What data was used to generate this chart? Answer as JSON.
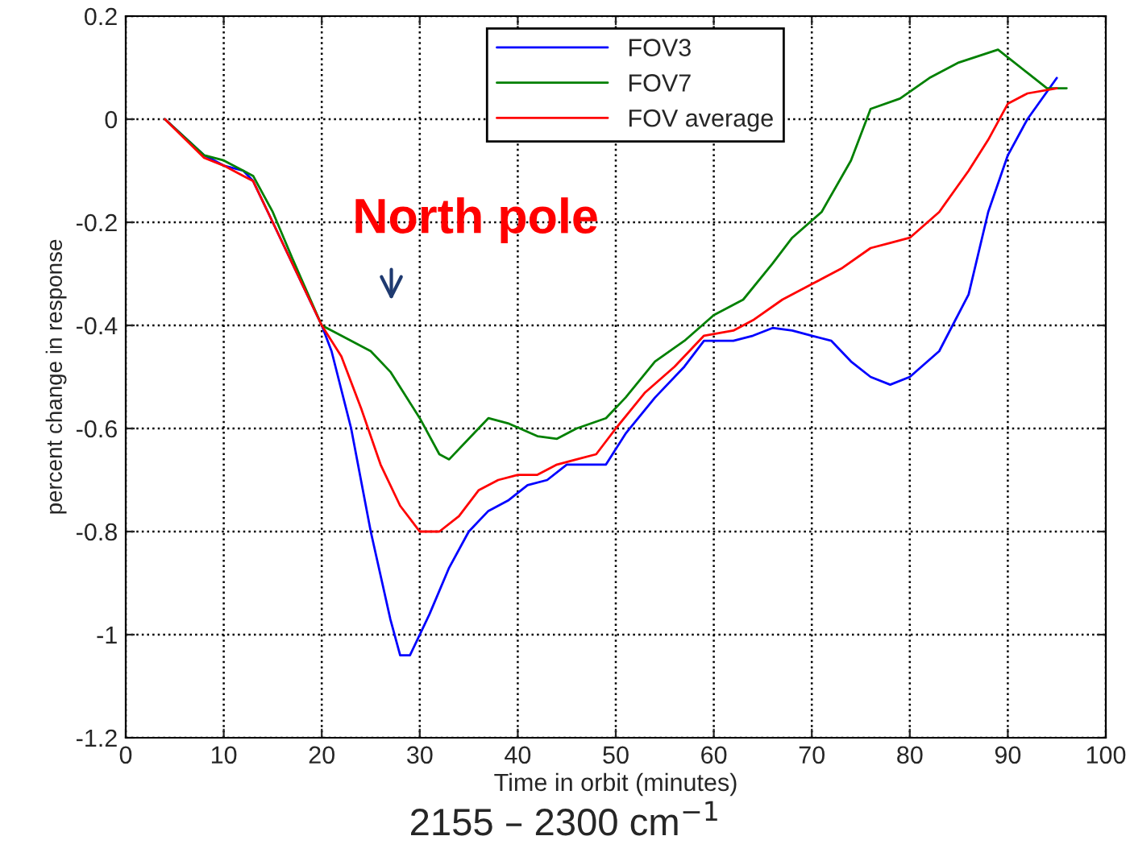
{
  "chart_data": {
    "type": "line",
    "xlabel": "Time in orbit (minutes)",
    "ylabel": "percent change in response",
    "xlim": [
      0,
      100
    ],
    "xticks": [
      0,
      10,
      20,
      30,
      40,
      50,
      60,
      70,
      80,
      90,
      100
    ],
    "ylim": [
      -1.2,
      0.2
    ],
    "yticks": [
      -1.2,
      -1,
      -0.8,
      -0.6,
      -0.4,
      -0.2,
      0,
      0.2
    ],
    "grid": true,
    "legend": "top",
    "line_style": "solid",
    "marker": "none",
    "series": [
      {
        "name": "FOV3",
        "color": "#0000ff",
        "x": [
          4,
          8,
          10,
          12,
          13,
          15,
          17,
          20,
          21,
          23,
          25,
          27,
          28,
          29,
          31,
          33,
          35,
          37,
          39,
          41,
          43,
          45,
          47,
          49,
          51,
          54,
          57,
          59,
          62,
          64,
          66,
          68,
          70,
          72,
          74,
          76,
          78,
          80,
          83,
          86,
          88,
          90,
          92,
          95
        ],
        "values": [
          0,
          -0.07,
          -0.09,
          -0.1,
          -0.12,
          -0.2,
          -0.28,
          -0.4,
          -0.45,
          -0.6,
          -0.8,
          -0.97,
          -1.04,
          -1.04,
          -0.96,
          -0.87,
          -0.8,
          -0.76,
          -0.74,
          -0.71,
          -0.7,
          -0.67,
          -0.67,
          -0.67,
          -0.61,
          -0.54,
          -0.48,
          -0.43,
          -0.43,
          -0.42,
          -0.405,
          -0.41,
          -0.42,
          -0.43,
          -0.47,
          -0.5,
          -0.515,
          -0.5,
          -0.45,
          -0.34,
          -0.18,
          -0.07,
          0.0,
          0.08
        ]
      },
      {
        "name": "FOV7",
        "color": "#008000",
        "x": [
          4,
          8,
          10,
          12,
          13,
          15,
          17,
          20,
          22,
          25,
          27,
          30,
          32,
          33,
          35,
          37,
          39,
          42,
          44,
          46,
          49,
          51,
          54,
          57,
          60,
          63,
          66,
          68,
          71,
          74,
          76,
          79,
          82,
          85,
          89,
          92,
          94,
          96
        ],
        "values": [
          0,
          -0.07,
          -0.08,
          -0.1,
          -0.11,
          -0.18,
          -0.27,
          -0.4,
          -0.42,
          -0.45,
          -0.49,
          -0.58,
          -0.65,
          -0.66,
          -0.62,
          -0.58,
          -0.59,
          -0.615,
          -0.62,
          -0.6,
          -0.58,
          -0.54,
          -0.47,
          -0.43,
          -0.38,
          -0.35,
          -0.28,
          -0.23,
          -0.18,
          -0.08,
          0.02,
          0.04,
          0.08,
          0.11,
          0.135,
          0.09,
          0.06,
          0.06
        ]
      },
      {
        "name": "FOV average",
        "color": "#ff0000",
        "x": [
          4,
          8,
          10,
          12,
          13,
          15,
          17,
          20,
          22,
          24,
          26,
          28,
          30,
          32,
          34,
          36,
          38,
          40,
          42,
          44,
          46,
          48,
          50,
          53,
          56,
          59,
          62,
          64,
          67,
          70,
          73,
          76,
          78,
          80,
          83,
          86,
          88,
          90,
          92,
          95
        ],
        "values": [
          0,
          -0.075,
          -0.09,
          -0.11,
          -0.12,
          -0.2,
          -0.28,
          -0.4,
          -0.46,
          -0.56,
          -0.67,
          -0.75,
          -0.8,
          -0.8,
          -0.77,
          -0.72,
          -0.7,
          -0.69,
          -0.69,
          -0.67,
          -0.66,
          -0.65,
          -0.6,
          -0.53,
          -0.48,
          -0.42,
          -0.41,
          -0.39,
          -0.35,
          -0.32,
          -0.29,
          -0.25,
          -0.24,
          -0.23,
          -0.18,
          -0.1,
          -0.04,
          0.03,
          0.05,
          0.06
        ]
      }
    ],
    "annotations": [
      "North pole",
      "2155 – 2300 cm$^{−1}$"
    ]
  }
}
